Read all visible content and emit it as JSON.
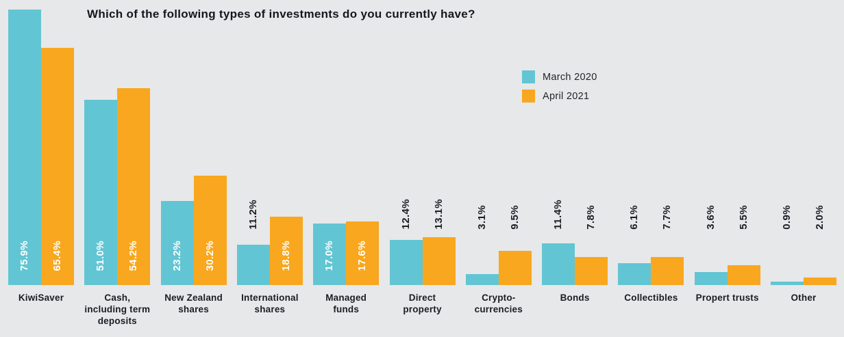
{
  "title": "Which of the following types of investments do you currently have?",
  "legend": [
    {
      "label": "March 2020",
      "color": "#62c5d3"
    },
    {
      "label": "April 2021",
      "color": "#f8a71e"
    }
  ],
  "colors": {
    "background": "#e7e8e9",
    "march_2020": "#62c5d3",
    "april_2021": "#f8a71e",
    "text_dark": "#1b1d24",
    "value_label_inside": "#ffffff"
  },
  "chart_data": {
    "type": "bar",
    "title": "Which of the following types of investments do you currently have?",
    "categories": [
      "KiwiSaver",
      "Cash,\nincluding term\ndeposits",
      "New Zealand\nshares",
      "International\nshares",
      "Managed\nfunds",
      "Direct\nproperty",
      "Crypto-\ncurrencies",
      "Bonds",
      "Collectibles",
      "Propert trusts",
      "Other"
    ],
    "series": [
      {
        "name": "March 2020",
        "color": "#62c5d3",
        "values": [
          75.9,
          51.0,
          23.2,
          11.2,
          17.0,
          12.4,
          3.1,
          11.4,
          6.1,
          3.6,
          0.9
        ]
      },
      {
        "name": "April 2021",
        "color": "#f8a71e",
        "values": [
          65.4,
          54.2,
          30.2,
          18.8,
          17.6,
          13.1,
          9.5,
          7.8,
          7.7,
          5.5,
          2.0
        ]
      }
    ],
    "value_suffix": "%",
    "value_decimals": 1,
    "xlabel": "",
    "ylabel": "",
    "ylim": [
      0,
      80
    ],
    "grid": false,
    "axis_lines": false,
    "legend_position": "upper-center-right",
    "value_label_rotation": 90
  }
}
